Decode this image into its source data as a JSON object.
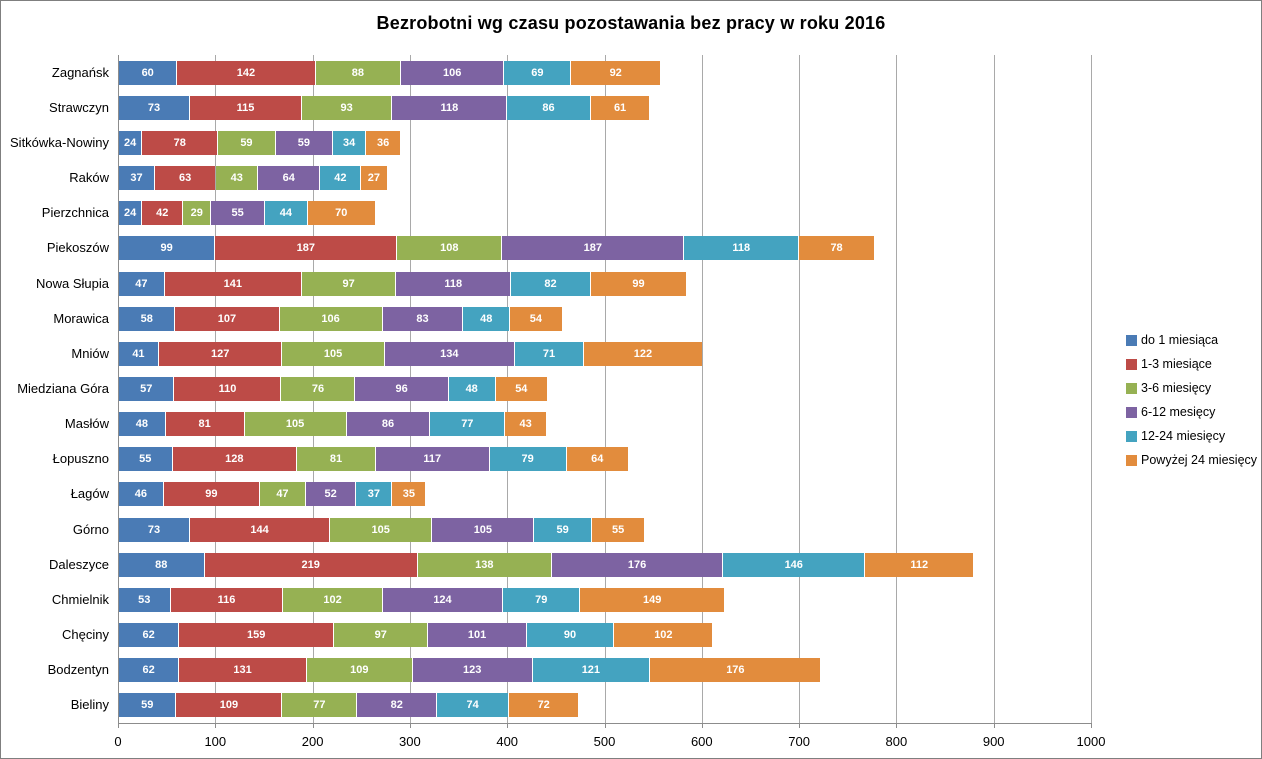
{
  "chart_data": {
    "type": "bar",
    "orientation": "horizontal-stacked",
    "title": "Bezrobotni wg czasu pozostawania bez pracy w roku 2016",
    "categories": [
      "Zagnańsk",
      "Strawczyn",
      "Sitkówka-Nowiny",
      "Raków",
      "Pierzchnica",
      "Piekoszów",
      "Nowa Słupia",
      "Morawica",
      "Mniów",
      "Miedziana Góra",
      "Masłów",
      "Łopuszno",
      "Łagów",
      "Górno",
      "Daleszyce",
      "Chmielnik",
      "Chęciny",
      "Bodzentyn",
      "Bieliny"
    ],
    "series": [
      {
        "name": "do 1 miesiąca",
        "color": "#4a7bb5",
        "values": [
          60,
          73,
          24,
          37,
          24,
          99,
          47,
          58,
          41,
          57,
          48,
          55,
          46,
          73,
          88,
          53,
          62,
          62,
          59
        ]
      },
      {
        "name": "1-3 miesiące",
        "color": "#bd4b47",
        "values": [
          142,
          115,
          78,
          63,
          42,
          187,
          141,
          107,
          127,
          110,
          81,
          128,
          99,
          144,
          219,
          116,
          159,
          131,
          109
        ]
      },
      {
        "name": "3-6 miesięcy",
        "color": "#96b153",
        "values": [
          88,
          93,
          59,
          43,
          29,
          108,
          97,
          106,
          105,
          76,
          105,
          81,
          47,
          105,
          138,
          102,
          97,
          109,
          77
        ]
      },
      {
        "name": "6-12 mesięcy",
        "color": "#7d63a2",
        "values": [
          106,
          118,
          59,
          64,
          55,
          187,
          118,
          83,
          134,
          96,
          86,
          117,
          52,
          105,
          176,
          124,
          101,
          123,
          82
        ]
      },
      {
        "name": "12-24 miesięcy",
        "color": "#44a3c0",
        "values": [
          69,
          86,
          34,
          42,
          44,
          118,
          82,
          48,
          71,
          48,
          77,
          79,
          37,
          59,
          146,
          79,
          90,
          121,
          74
        ]
      },
      {
        "name": "Powyżej 24 miesięcy",
        "color": "#e28c3d",
        "values": [
          92,
          61,
          36,
          27,
          70,
          78,
          99,
          54,
          122,
          54,
          43,
          64,
          35,
          55,
          112,
          149,
          102,
          176,
          72
        ]
      }
    ],
    "xlim": [
      0,
      1000
    ],
    "x_ticks": [
      "0",
      "100",
      "200",
      "300",
      "400",
      "500",
      "600",
      "700",
      "800",
      "900",
      "1000"
    ],
    "grid": "vertical-major",
    "legend_position": "right",
    "value_labels": "inside-center-white-bold"
  },
  "colors": {
    "gridline": "#a9a9a9",
    "axis": "#8c8c8c",
    "border": "#7f7f7f",
    "value_label": "#ffffff",
    "text": "#000000"
  }
}
